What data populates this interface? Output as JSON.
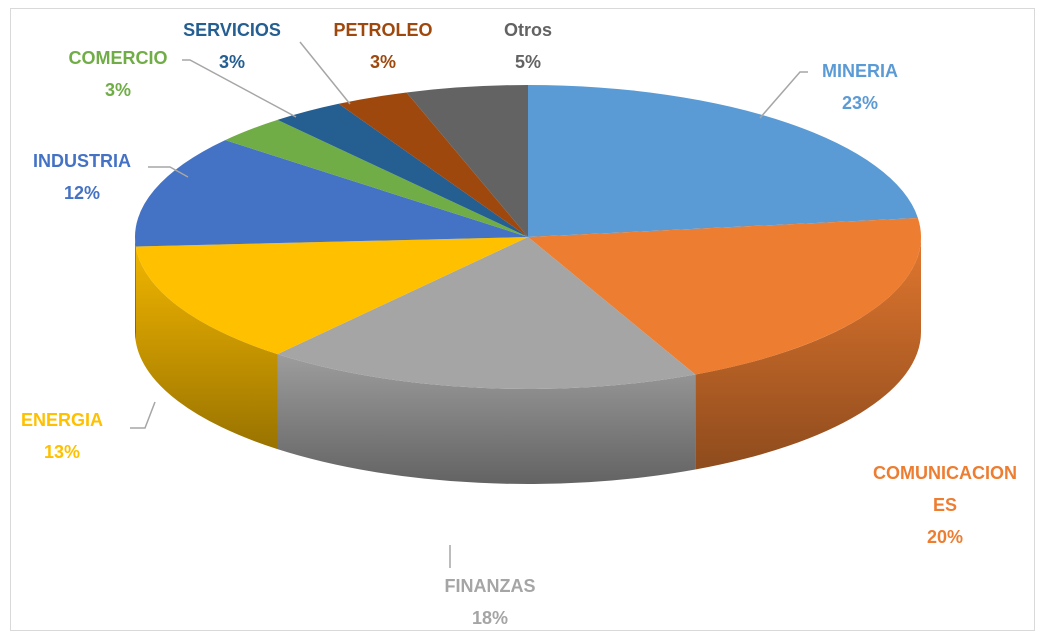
{
  "chart_data": {
    "type": "pie",
    "categories": [
      "MINERIA",
      "COMUNICACIONES",
      "FINANZAS",
      "ENERGIA",
      "INDUSTRIA",
      "COMERCIO",
      "SERVICIOS",
      "PETROLEO",
      "Otros"
    ],
    "values": [
      23,
      20,
      18,
      13,
      12,
      3,
      3,
      3,
      5
    ],
    "value_labels": [
      "23%",
      "20%",
      "18%",
      "13%",
      "12%",
      "3%",
      "3%",
      "3%",
      "5%"
    ],
    "colors": [
      "#5b9bd5",
      "#ed7d31",
      "#a5a5a5",
      "#ffc000",
      "#4472c4",
      "#70ad47",
      "#255e91",
      "#9e480e",
      "#636363"
    ]
  }
}
